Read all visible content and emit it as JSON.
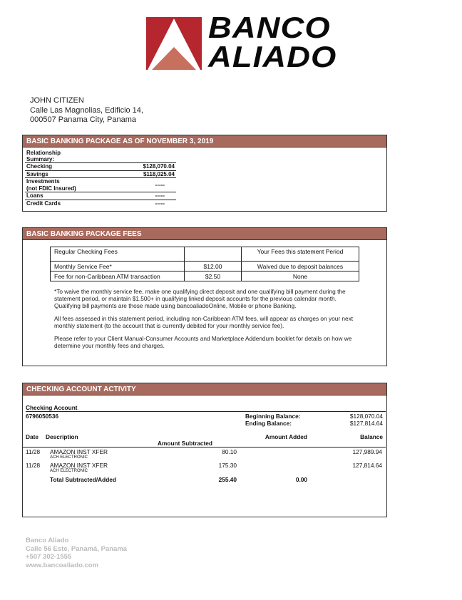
{
  "logo": {
    "text": [
      "BANCO",
      "ALIADO"
    ],
    "colors": {
      "red": "#b5262e",
      "salmon": "#c8705e"
    }
  },
  "customer": {
    "name": "JOHN CITIZEN",
    "address_line1": "Calle Las Magnolias, Edificio 14,",
    "address_line2": "000507 Panama City, Panama"
  },
  "summary": {
    "title": "BASIC BANKING PACKAGE AS OF NOVEMBER 3, 2019",
    "heading": [
      "Relationship",
      "Summary:"
    ],
    "rows": [
      {
        "label": "Checking",
        "value": "$128,070.04"
      },
      {
        "label": "Savings",
        "value": "$118,025.04"
      },
      {
        "label": "Investments",
        "label2": "(not FDIC Insured)",
        "value": "-----"
      },
      {
        "label": "Loans",
        "value": "-----"
      },
      {
        "label": "Credit Cards",
        "value": "-----"
      }
    ]
  },
  "fees": {
    "title": "BASIC BANKING PACKAGE FEES",
    "header": [
      "Regular Checking Fees",
      "",
      "Your Fees this statement Period"
    ],
    "rows": [
      [
        "Monthly Service Fee*",
        "$12.00",
        "Waived due to deposit balances"
      ],
      [
        "Fee for non-Caribbean ATM transaction",
        "$2.50",
        "None"
      ]
    ],
    "notes": [
      "*To waive the monthly service fee, make one qualifying direct deposit and one qualifying bill payment during the statement period, or maintain $1.500+ in qualifying linked deposit accounts for the previous calendar month. Qualifying bill payments are those made using bancoaliadoOnline, Mobile or phone Banking.",
      "All fees assessed in this statement period, including non-Caribbean ATM fees, will appear as charges on your next monthly statement (to the account that is currently debited for your monthly service fee).",
      "Please refer to your Client Manual-Consumer Accounts and Marketplace Addendum booklet for details on how we determine your monthly fees and charges."
    ]
  },
  "activity": {
    "title": "CHECKING ACCOUNT ACTIVITY",
    "account_label": "Checking Account",
    "account_number": "6796050536",
    "beginning_label": "Beginning Balance:",
    "beginning": "$128,070.04",
    "ending_label": "Ending Balance:",
    "ending": "$127,814.64",
    "columns": {
      "date": "Date",
      "description": "Description",
      "subtracted": "Amount Subtracted",
      "added": "Amount Added",
      "balance": "Balance"
    },
    "rows": [
      {
        "date": "11/28",
        "description": "AMAZON INST XFER",
        "sub": "ACH ELECTRONIC",
        "subtracted": "80.10",
        "added": "",
        "balance": "127,989.94"
      },
      {
        "date": "11/28",
        "description": "AMAZON INST XFER",
        "sub": "ACH ELECTRONIC",
        "subtracted": "175.30",
        "added": "",
        "balance": "127,814.64"
      }
    ],
    "total": {
      "label": "Total Subtracted/Added",
      "subtracted": "255.40",
      "added": "0.00"
    }
  },
  "footer": {
    "name": "Banco Aliado",
    "address": "Calle 56 Este, Panamá, Panama",
    "phone": "+507 302-1555",
    "website": "www.bancoaliado.com"
  }
}
